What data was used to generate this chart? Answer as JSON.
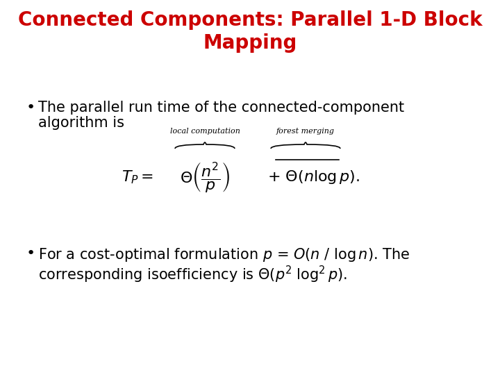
{
  "title_line1": "Connected Components: Parallel 1-D Block",
  "title_line2": "Mapping",
  "title_color": "#cc0000",
  "title_fontsize": 20,
  "bg_color": "#ffffff",
  "bullet1_line1": "The parallel run time of the connected-component",
  "bullet1_line2": "algorithm is",
  "body_fontsize": 15,
  "body_color": "#000000",
  "formula_fontsize": 13,
  "label_fontsize": 8,
  "bullet2_line1": "For a cost-optimal formulation ",
  "bullet2_line2": "corresponding isoefficiency is "
}
